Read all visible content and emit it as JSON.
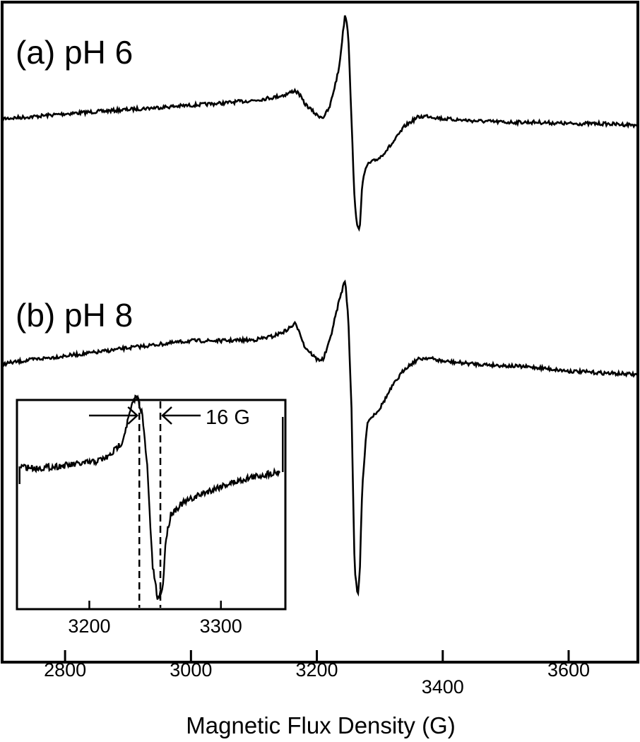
{
  "chart_data": [
    {
      "type": "line",
      "xlabel": "Magnetic Flux Density (G)",
      "xlim": [
        2700,
        3710
      ],
      "xticks": [
        2800,
        3000,
        3200,
        3400,
        3600
      ],
      "yaxis_labeled": false,
      "grid": false,
      "series": [
        {
          "name": "(a) pH 6",
          "x": [
            2700,
            2750,
            2800,
            2850,
            2900,
            2950,
            3000,
            3050,
            3100,
            3130,
            3150,
            3165,
            3172,
            3180,
            3200,
            3210,
            3220,
            3235,
            3245,
            3250,
            3255,
            3260,
            3265,
            3268,
            3272,
            3280,
            3300,
            3320,
            3340,
            3360,
            3375,
            3400,
            3450,
            3500,
            3550,
            3600,
            3650,
            3710
          ],
          "y": [
            0.0,
            0.03,
            0.07,
            0.1,
            0.13,
            0.16,
            0.19,
            0.22,
            0.26,
            0.3,
            0.34,
            0.4,
            0.35,
            0.22,
            0.05,
            0.02,
            0.15,
            0.7,
            1.5,
            1.2,
            0.0,
            -1.2,
            -1.55,
            -1.6,
            -0.9,
            -0.65,
            -0.55,
            -0.35,
            -0.1,
            0.02,
            0.04,
            0.0,
            -0.03,
            -0.05,
            -0.05,
            -0.07,
            -0.07,
            -0.09
          ]
        },
        {
          "name": "(b) pH 8",
          "x": [
            2700,
            2750,
            2800,
            2850,
            2900,
            2950,
            3000,
            3050,
            3100,
            3130,
            3150,
            3165,
            3172,
            3180,
            3200,
            3210,
            3220,
            3235,
            3245,
            3250,
            3255,
            3260,
            3265,
            3268,
            3272,
            3280,
            3300,
            3320,
            3340,
            3360,
            3375,
            3400,
            3450,
            3500,
            3550,
            3600,
            3650,
            3710
          ],
          "y": [
            0.0,
            0.05,
            0.09,
            0.13,
            0.18,
            0.22,
            0.26,
            0.26,
            0.27,
            0.31,
            0.37,
            0.45,
            0.38,
            0.2,
            0.05,
            0.05,
            0.25,
            0.7,
            0.95,
            0.5,
            -0.5,
            -2.3,
            -2.6,
            -2.4,
            -1.4,
            -0.65,
            -0.5,
            -0.25,
            -0.05,
            0.05,
            0.07,
            0.03,
            0.0,
            -0.02,
            -0.04,
            -0.08,
            -0.1,
            -0.12
          ]
        }
      ]
    },
    {
      "type": "line",
      "xlim": [
        3145,
        3349
      ],
      "xticks": [
        3200,
        3300
      ],
      "annotation": "16 G",
      "marker_lines_x": [
        3238,
        3254
      ],
      "series": [
        {
          "x": [
            3148,
            3160,
            3175,
            3190,
            3205,
            3215,
            3225,
            3232,
            3236,
            3240,
            3244,
            3248,
            3252,
            3256,
            3258,
            3262,
            3270,
            3285,
            3300,
            3320,
            3345
          ],
          "y": [
            0.0,
            -0.02,
            0.0,
            0.02,
            0.05,
            0.1,
            0.25,
            0.6,
            0.72,
            0.55,
            0.0,
            -1.0,
            -1.35,
            -1.2,
            -0.75,
            -0.48,
            -0.38,
            -0.28,
            -0.2,
            -0.12,
            -0.05
          ]
        }
      ]
    }
  ]
}
